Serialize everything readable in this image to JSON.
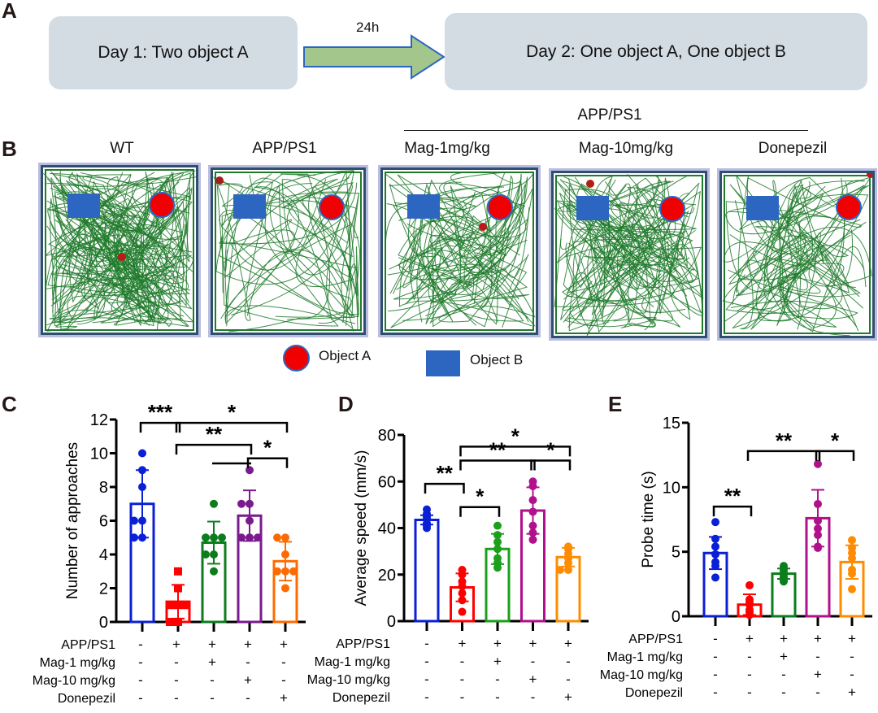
{
  "panel_a": {
    "label": "A",
    "day1": "Day 1: Two object A",
    "interval": "24h",
    "day2": "Day 2: One object A, One object B"
  },
  "panel_b": {
    "label": "B",
    "group_header": "APP/PS1",
    "arenas": [
      {
        "title": "WT"
      },
      {
        "title": "APP/PS1"
      },
      {
        "title": "Mag-1mg/kg"
      },
      {
        "title": "Mag-10mg/kg"
      },
      {
        "title": "Donepezil"
      }
    ],
    "legend": {
      "object_a": "Object A",
      "object_b": "Object B"
    }
  },
  "colors": {
    "wt": "#0a1fd6",
    "app": "#ff0000",
    "mag1": "#0b7d1c",
    "mag10": "#7a1a8e",
    "donepezil": "#ff6a00",
    "track": "#1f7a2a",
    "object_a": "#f00000",
    "object_b": "#2c66c0"
  },
  "condition_table": {
    "rows": [
      {
        "label": "APP/PS1",
        "values": [
          "-",
          "+",
          "+",
          "+",
          "+"
        ]
      },
      {
        "label": "Mag-1 mg/kg",
        "values": [
          "-",
          "-",
          "+",
          "-",
          "-"
        ]
      },
      {
        "label": "Mag-10 mg/kg",
        "values": [
          "-",
          "-",
          "-",
          "+",
          "-"
        ]
      },
      {
        "label": "Donepezil",
        "values": [
          "-",
          "-",
          "-",
          "-",
          "+"
        ]
      }
    ]
  },
  "chart_data": [
    {
      "panel": "C",
      "type": "bar",
      "ylabel": "Number of approaches",
      "ylim": [
        0,
        12
      ],
      "yticks": [
        0,
        2,
        4,
        6,
        8,
        10,
        12
      ],
      "categories": [
        "WT",
        "APP/PS1",
        "Mag-1",
        "Mag-10",
        "Donepezil"
      ],
      "series": [
        {
          "name": "WT",
          "mean": 7.0,
          "sd": 2.0,
          "points": [
            10,
            9,
            8,
            6,
            6,
            5,
            5
          ],
          "marker": "circle",
          "color": "#0a1fd6"
        },
        {
          "name": "APP/PS1",
          "mean": 1.2,
          "sd": 1.0,
          "points": [
            3,
            2,
            1,
            1,
            1,
            0,
            0
          ],
          "marker": "square",
          "color": "#ff0000"
        },
        {
          "name": "Mag-1",
          "mean": 4.7,
          "sd": 1.25,
          "points": [
            7,
            5,
            5,
            5,
            4,
            4,
            3
          ],
          "marker": "circle",
          "color": "#0b7d1c"
        },
        {
          "name": "Mag-10",
          "mean": 6.3,
          "sd": 1.5,
          "points": [
            9,
            7,
            7,
            6,
            5,
            5,
            5
          ],
          "marker": "circle",
          "color": "#7a1a8e"
        },
        {
          "name": "Donepezil",
          "mean": 3.6,
          "sd": 1.15,
          "points": [
            5,
            5,
            4,
            3,
            3,
            3,
            2
          ],
          "marker": "circle",
          "color": "#ff6a00"
        }
      ],
      "significance": [
        {
          "from": 0,
          "to": 1,
          "label": "***",
          "level": 11.8
        },
        {
          "from": 1,
          "to": 4,
          "label": "*",
          "level": 11.8
        },
        {
          "from": 1,
          "to": 3,
          "label": "**",
          "level": 10.5
        },
        {
          "from": 2,
          "to": 3,
          "label": "",
          "level": 9.4
        },
        {
          "from": 3,
          "to": 4,
          "label": "*",
          "level": 9.7
        }
      ]
    },
    {
      "panel": "D",
      "type": "bar",
      "ylabel": "Average speed (mm/s)",
      "ylim": [
        0,
        80
      ],
      "yticks": [
        0,
        20,
        40,
        60,
        80
      ],
      "categories": [
        "WT",
        "APP/PS1",
        "Mag-1",
        "Mag-10",
        "Donepezil"
      ],
      "series": [
        {
          "name": "WT",
          "mean": 43.5,
          "sd": 2.0,
          "points": [
            48,
            46,
            45,
            44,
            42,
            41,
            40
          ],
          "marker": "circle",
          "color": "#0a1fd6"
        },
        {
          "name": "APP/PS1",
          "mean": 14.5,
          "sd": 6.0,
          "points": [
            22,
            20,
            17,
            15,
            12,
            9,
            4
          ],
          "marker": "circle",
          "color": "#ff0000"
        },
        {
          "name": "Mag-1",
          "mean": 31.0,
          "sd": 6.5,
          "points": [
            41,
            37,
            34,
            31,
            27,
            25,
            23
          ],
          "marker": "circle",
          "color": "#1aa01a"
        },
        {
          "name": "Mag-10",
          "mean": 47.5,
          "sd": 10.0,
          "points": [
            60,
            58,
            52,
            47,
            41,
            38,
            35
          ],
          "marker": "circle",
          "color": "#b0108c"
        },
        {
          "name": "Donepezil",
          "mean": 27.5,
          "sd": 4.0,
          "points": [
            32,
            31,
            29,
            27,
            25,
            22,
            22
          ],
          "marker": "circle",
          "color": "#ff8c00"
        }
      ],
      "significance": [
        {
          "from": 0,
          "to": 1,
          "label": "**",
          "level": 59
        },
        {
          "from": 1,
          "to": 2,
          "label": "*",
          "level": 49
        },
        {
          "from": 1,
          "to": 3,
          "label": "**",
          "level": 69
        },
        {
          "from": 1,
          "to": 4,
          "label": "*",
          "level": 75
        },
        {
          "from": 3,
          "to": 4,
          "label": "*",
          "level": 69
        }
      ]
    },
    {
      "panel": "E",
      "type": "bar",
      "ylabel": "Probe time (s)",
      "ylim": [
        0,
        15
      ],
      "yticks": [
        0,
        5,
        10,
        15
      ],
      "categories": [
        "WT",
        "APP/PS1",
        "Mag-1",
        "Mag-10",
        "Donepezil"
      ],
      "series": [
        {
          "name": "WT",
          "mean": 4.9,
          "sd": 1.25,
          "points": [
            7.3,
            6.0,
            5.4,
            4.8,
            4.2,
            3.9,
            3.0
          ],
          "marker": "circle",
          "color": "#0a1fd6"
        },
        {
          "name": "APP/PS1",
          "mean": 0.9,
          "sd": 0.8,
          "points": [
            2.4,
            1.3,
            1.1,
            0.9,
            0.5,
            0.3,
            0.1
          ],
          "marker": "circle",
          "color": "#ff0000"
        },
        {
          "name": "Mag-1",
          "mean": 3.3,
          "sd": 0.4,
          "points": [
            3.9,
            3.7,
            3.5,
            3.2,
            3.0,
            2.8,
            2.7
          ],
          "marker": "circle",
          "color": "#0b7d1c"
        },
        {
          "name": "Mag-10",
          "mean": 7.6,
          "sd": 2.2,
          "points": [
            11.8,
            8.7,
            7.4,
            6.8,
            6.3,
            5.4,
            5.3
          ],
          "marker": "circle",
          "color": "#b0108c"
        },
        {
          "name": "Donepezil",
          "mean": 4.2,
          "sd": 1.3,
          "points": [
            5.9,
            5.3,
            4.9,
            4.5,
            3.6,
            3.3,
            2.1
          ],
          "marker": "circle",
          "color": "#ff8c00"
        }
      ],
      "significance": [
        {
          "from": 0,
          "to": 1,
          "label": "**",
          "level": 8.5
        },
        {
          "from": 1,
          "to": 3,
          "label": "**",
          "level": 12.8
        },
        {
          "from": 3,
          "to": 4,
          "label": "*",
          "level": 12.8
        }
      ]
    }
  ]
}
